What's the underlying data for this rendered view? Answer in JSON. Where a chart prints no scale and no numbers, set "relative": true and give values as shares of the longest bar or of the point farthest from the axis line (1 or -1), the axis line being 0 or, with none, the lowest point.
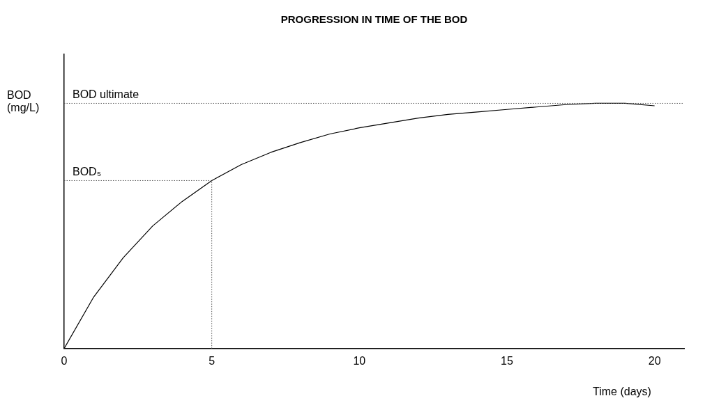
{
  "chart_data": {
    "type": "line",
    "title": "PROGRESSION IN TIME OF THE BOD",
    "xlabel": "Time (days)",
    "ylabel": "BOD (mg/L)",
    "relative": true,
    "x": [
      0,
      1,
      2,
      3,
      4,
      5,
      6,
      7,
      8,
      9,
      10,
      11,
      12,
      13,
      14,
      15,
      16,
      17,
      18,
      19,
      20
    ],
    "series": [
      {
        "color": "#000000",
        "values": [
          0,
          0.21,
          0.37,
          0.5,
          0.6,
          0.685,
          0.75,
          0.8,
          0.84,
          0.875,
          0.9,
          0.92,
          0.94,
          0.955,
          0.965,
          0.975,
          0.985,
          0.995,
          1,
          1,
          0.99
        ]
      }
    ],
    "xlim": [
      0,
      21
    ],
    "xticks": [
      0,
      5,
      10,
      15,
      20
    ],
    "grid": false,
    "legend": false,
    "marker": "none",
    "line_style": "solid",
    "ref_lines": [
      {
        "axis": "y",
        "value": 1,
        "label": "BOD ultimate",
        "line_style": "dotted"
      },
      {
        "axis": "y",
        "value": 0.685,
        "label": "BOD₅",
        "line_style": "dotted"
      },
      {
        "axis": "x",
        "value": 5,
        "line_style": "dotted"
      }
    ]
  }
}
